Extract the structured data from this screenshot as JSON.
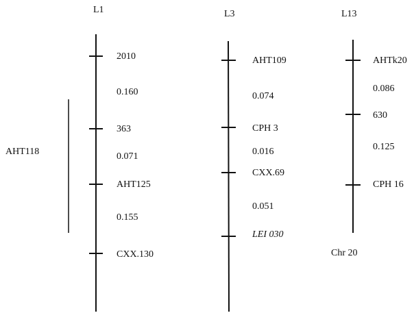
{
  "linkage_groups": [
    {
      "name": "L1",
      "markers": [
        "2010",
        "363",
        "AHT125",
        "CXX.130"
      ],
      "distances": [
        "0.160",
        "0.071",
        "0.155"
      ]
    },
    {
      "name": "L3",
      "markers": [
        "AHT109",
        "CPH 3",
        "CXX.69",
        "LEI 030"
      ],
      "distances": [
        "0.074",
        "0.016",
        "0.051"
      ]
    },
    {
      "name": "L13",
      "markers": [
        "AHTk20",
        "630",
        "CPH 16"
      ],
      "distances": [
        "0.086",
        "0.125"
      ]
    }
  ],
  "side_marker": "AHT118",
  "chromosome_label": "Chr 20",
  "colors": {
    "line": "#111111",
    "text": "#111111",
    "background": "#ffffff"
  }
}
